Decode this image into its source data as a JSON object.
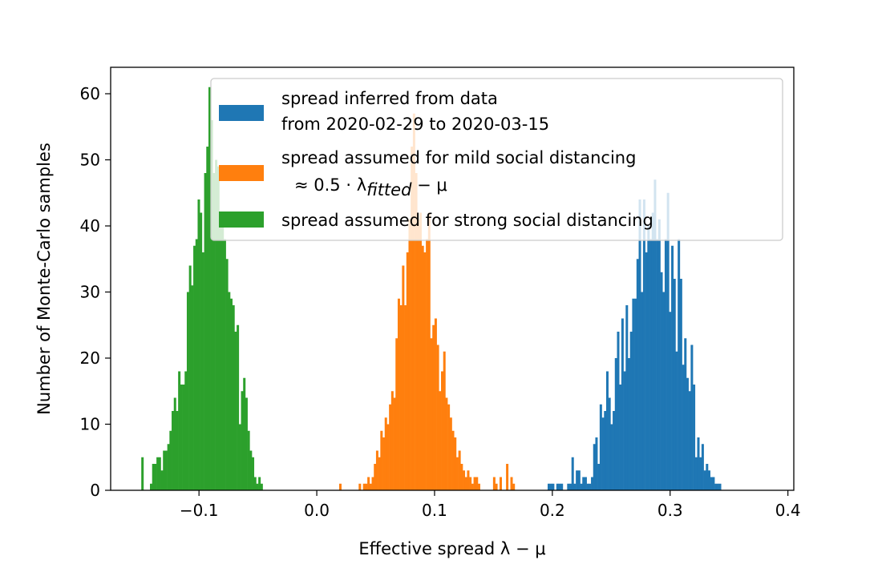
{
  "chart_data": {
    "type": "histogram",
    "title": "",
    "xlabel": "Effective spread λ − μ",
    "ylabel": "Number of Monte-Carlo samples",
    "xlim": [
      -0.175,
      0.405
    ],
    "ylim": [
      0,
      64
    ],
    "x_ticks": [
      -0.1,
      0.0,
      0.1,
      0.2,
      0.3,
      0.4
    ],
    "x_tick_labels": [
      "−0.1",
      "0.0",
      "0.1",
      "0.2",
      "0.3",
      "0.4"
    ],
    "y_ticks": [
      0,
      10,
      20,
      30,
      40,
      50,
      60
    ],
    "y_tick_labels": [
      "0",
      "10",
      "20",
      "30",
      "40",
      "50",
      "60"
    ],
    "grid": false,
    "legend_position": "upper-right",
    "series": [
      {
        "name": "spread inferred from data from 2020-02-29 to 2020-03-15",
        "legend_lines": [
          "spread inferred from data",
          "from 2020-02-29 to 2020-03-15"
        ],
        "color": "#1f77b4",
        "bin_start": 0.196,
        "bin_width": 0.00184,
        "counts": [
          1,
          1,
          1,
          0,
          1,
          1,
          1,
          0,
          0,
          1,
          1,
          5,
          1,
          3,
          3,
          1,
          2,
          2,
          1,
          1,
          2,
          7,
          8,
          4,
          13,
          11,
          12,
          18,
          14,
          10,
          12,
          20,
          24,
          16,
          26,
          18,
          28,
          20,
          24,
          29,
          29,
          35,
          44,
          30,
          44,
          36,
          40,
          38,
          42,
          47,
          38,
          41,
          33,
          30,
          38,
          45,
          27,
          37,
          32,
          21,
          38,
          32,
          19,
          23,
          17,
          15,
          22,
          16,
          5,
          8,
          5,
          7,
          3,
          4,
          3,
          2,
          2,
          1,
          1,
          1
        ]
      },
      {
        "name": "spread assumed for mild social distancing ≈0.5·λ_fitted − μ",
        "legend_lines": [
          "spread assumed for mild social distancing",
          "≈ 0.5 · λ",
          "fitted",
          " − μ"
        ],
        "color": "#ff7f0e",
        "bin_start": 0.019,
        "bin_width": 0.00184,
        "counts": [
          1,
          0,
          0,
          0,
          0,
          0,
          0,
          0,
          0,
          1,
          0,
          1,
          1,
          2,
          1,
          2,
          4,
          6,
          5,
          9,
          8,
          11,
          10,
          13,
          15,
          14,
          23,
          29,
          28,
          34,
          28,
          36,
          41,
          52,
          57,
          48,
          41,
          42,
          37,
          36,
          38,
          42,
          23,
          25,
          26,
          22,
          15,
          18,
          21,
          14,
          13,
          11,
          9,
          8,
          5,
          6,
          4,
          3,
          2,
          3,
          2,
          1,
          2,
          2,
          1,
          0,
          0,
          0,
          0,
          0,
          0,
          2,
          1,
          0,
          2,
          0,
          0,
          4,
          0,
          2,
          1
        ]
      },
      {
        "name": "spread assumed for strong social distancing",
        "legend_lines": [
          "spread assumed for strong social distancing"
        ],
        "color": "#2ca02c",
        "bin_start": -0.149,
        "bin_width": 0.00184,
        "counts": [
          5,
          0,
          0,
          0,
          1,
          4,
          4,
          5,
          5,
          3,
          6,
          6,
          7,
          9,
          12,
          14,
          12,
          18,
          16,
          16,
          18,
          30,
          34,
          31,
          37,
          38,
          44,
          42,
          36,
          48,
          52,
          61,
          56,
          48,
          50,
          49,
          42,
          40,
          38,
          35,
          30,
          29,
          28,
          24,
          25,
          10,
          15,
          17,
          14,
          9,
          6,
          5,
          2,
          1,
          2,
          1
        ]
      }
    ]
  }
}
